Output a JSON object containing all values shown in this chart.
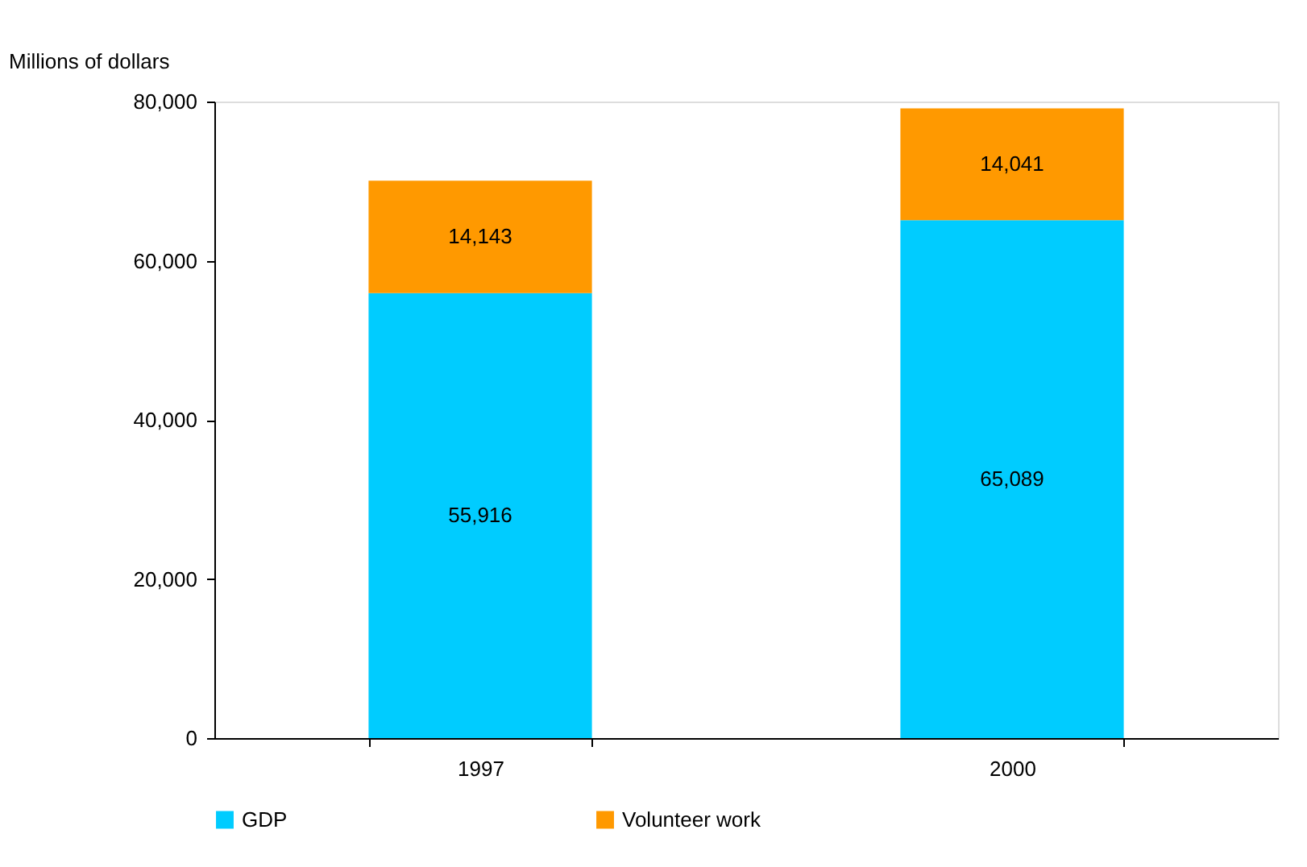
{
  "chart_data": {
    "type": "bar",
    "stacked": true,
    "ylabel": "Millions of dollars",
    "categories": [
      "1997",
      "2000"
    ],
    "series": [
      {
        "name": "GDP",
        "color": "#00ccff",
        "values": [
          55916,
          65089
        ],
        "value_labels": [
          "55,916",
          "65,089"
        ]
      },
      {
        "name": "Volunteer work",
        "color": "#ff9900",
        "values": [
          14143,
          14041
        ],
        "value_labels": [
          "14,143",
          "14,041"
        ]
      }
    ],
    "ylim": [
      0,
      80000
    ],
    "yticks": [
      0,
      {
        "value": 20000,
        "label": "20,000"
      },
      {
        "value": 40000,
        "label": "40,000"
      },
      {
        "value": 60000,
        "label": "60,000"
      },
      {
        "value": 80000,
        "label": "80,000"
      }
    ],
    "grid": false,
    "legend": "bottom"
  }
}
